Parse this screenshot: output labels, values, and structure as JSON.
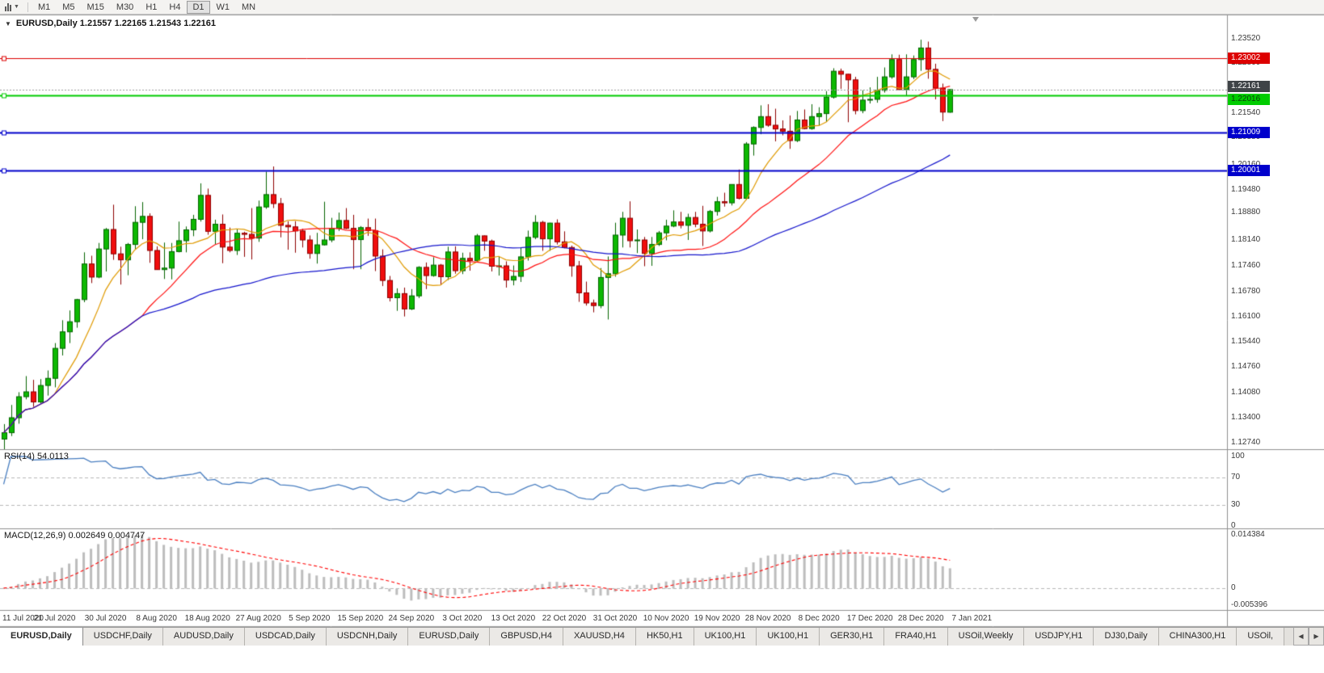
{
  "toolbar": {
    "timeframes": [
      "M1",
      "M5",
      "M15",
      "M30",
      "H1",
      "H4",
      "D1",
      "W1",
      "MN"
    ],
    "active_timeframe": "D1"
  },
  "chart_title": {
    "collapse_icon": "▼",
    "text": "EURUSD,Daily 1.21557 1.22165 1.21543 1.22161"
  },
  "chart_data": {
    "type": "candlestick",
    "title": "EURUSD,Daily",
    "ohlc_display": {
      "open": "1.21557",
      "high": "1.22165",
      "low": "1.21543",
      "close": "1.22161"
    },
    "ylim": [
      1.1257,
      1.2414
    ],
    "x_labels": [
      "11 Jul 2020",
      "21 Jul 2020",
      "30 Jul 2020",
      "8 Aug 2020",
      "18 Aug 2020",
      "27 Aug 2020",
      "5 Sep 2020",
      "15 Sep 2020",
      "24 Sep 2020",
      "3 Oct 2020",
      "13 Oct 2020",
      "22 Oct 2020",
      "31 Oct 2020",
      "10 Nov 2020",
      "19 Nov 2020",
      "28 Nov 2020",
      "8 Dec 2020",
      "17 Dec 2020",
      "28 Dec 2020",
      "7 Jan 2021"
    ],
    "price_axis_labels": [
      "1.23520",
      "1.22860",
      "1.21540",
      "1.20880",
      "1.20160",
      "1.19480",
      "1.18880",
      "1.18140",
      "1.17460",
      "1.16780",
      "1.16100",
      "1.15440",
      "1.14760",
      "1.14080",
      "1.13400",
      "1.12740"
    ],
    "colors": {
      "background": "#ffffff",
      "axis_text": "#3a3a3a",
      "bull": "#0db802",
      "bull_border": "#056400",
      "bull_wick": "#056400",
      "bear": "#f00e0e",
      "bear_border": "#8e0000",
      "bear_wick": "#8e0000"
    },
    "moving_averages": [
      {
        "name": "sma-fast",
        "period": 8,
        "color": "#e09a00"
      },
      {
        "name": "sma-mid",
        "period": 20,
        "color": "#ff1010"
      },
      {
        "name": "sma-slow",
        "period": 50,
        "color": "#1414cc"
      }
    ],
    "horizontal_levels": [
      {
        "label": "1.23002",
        "price": 1.23002,
        "color": "#dd0000",
        "text_color": "#ffffff",
        "width": 1,
        "dy": 0
      },
      {
        "label": "1.22016",
        "price": 1.22016,
        "color": "#00cc00",
        "text_color": "#0b3d0b",
        "width": 2,
        "dy": 5
      },
      {
        "label": "1.21009",
        "price": 1.21009,
        "color": "#0000cc",
        "text_color": "#ffffff",
        "width": 2,
        "dy": 0
      },
      {
        "label": "1.20001",
        "price": 1.20001,
        "color": "#0000cc",
        "text_color": "#ffffff",
        "width": 2,
        "dy": 0
      }
    ],
    "current_price": {
      "label": "1.22161",
      "price": 1.22161,
      "line_color": "#9a9a9a",
      "tag_color": "#3f4347",
      "text_color": "#ffffff",
      "dy": -4
    },
    "indicators": [
      {
        "type": "line",
        "name": "rsi",
        "label": "RSI(14) 54.0113",
        "period": 14,
        "value": "54.0113",
        "color": "#4a7fc1",
        "levels": [
          70,
          30
        ],
        "axis_labels": [
          "100",
          "70",
          "30",
          "0"
        ],
        "ylim": [
          0,
          100
        ]
      },
      {
        "type": "macd",
        "name": "macd",
        "label": "MACD(12,26,9) 0.002649 0.004747",
        "fast": 12,
        "slow": 26,
        "signal": 9,
        "values": [
          "0.002649",
          "0.004747"
        ],
        "histogram_color": "#bdbdbd",
        "signal_color": "#ff0000",
        "axis_labels": [
          "0.014384",
          "0",
          "-0.005396"
        ],
        "ylim": [
          -0.0055,
          0.0148
        ]
      }
    ],
    "ohlc": [
      [
        1.1284,
        1.1324,
        1.1255,
        1.1301
      ],
      [
        1.1301,
        1.1375,
        1.1292,
        1.1341
      ],
      [
        1.1341,
        1.1409,
        1.1325,
        1.1397
      ],
      [
        1.1397,
        1.1452,
        1.139,
        1.141
      ],
      [
        1.141,
        1.1442,
        1.137,
        1.1383
      ],
      [
        1.1383,
        1.1444,
        1.1378,
        1.1427
      ],
      [
        1.1427,
        1.1467,
        1.14,
        1.1446
      ],
      [
        1.1446,
        1.154,
        1.1422,
        1.1526
      ],
      [
        1.1526,
        1.1601,
        1.1507,
        1.157
      ],
      [
        1.157,
        1.1627,
        1.154,
        1.1597
      ],
      [
        1.1597,
        1.1658,
        1.1581,
        1.1656
      ],
      [
        1.1656,
        1.1782,
        1.1649,
        1.1751
      ],
      [
        1.1751,
        1.1773,
        1.17,
        1.1716
      ],
      [
        1.1716,
        1.1807,
        1.1713,
        1.1791
      ],
      [
        1.1791,
        1.1847,
        1.1731,
        1.1843
      ],
      [
        1.1843,
        1.1909,
        1.1762,
        1.1778
      ],
      [
        1.1778,
        1.1797,
        1.1696,
        1.1762
      ],
      [
        1.1762,
        1.1807,
        1.1721,
        1.1803
      ],
      [
        1.1803,
        1.1905,
        1.1791,
        1.1862
      ],
      [
        1.1862,
        1.1916,
        1.1817,
        1.1878
      ],
      [
        1.1878,
        1.1886,
        1.1754,
        1.1787
      ],
      [
        1.1787,
        1.1798,
        1.1736,
        1.1736
      ],
      [
        1.1736,
        1.1808,
        1.1711,
        1.174
      ],
      [
        1.174,
        1.1807,
        1.171,
        1.1784
      ],
      [
        1.1784,
        1.1864,
        1.1782,
        1.1813
      ],
      [
        1.1813,
        1.1851,
        1.1782,
        1.1842
      ],
      [
        1.1842,
        1.1882,
        1.1825,
        1.187
      ],
      [
        1.187,
        1.1966,
        1.1864,
        1.1934
      ],
      [
        1.1934,
        1.1952,
        1.1829,
        1.1838
      ],
      [
        1.1838,
        1.1869,
        1.1804,
        1.1857
      ],
      [
        1.1857,
        1.1883,
        1.1753,
        1.1796
      ],
      [
        1.1796,
        1.1848,
        1.1782,
        1.1787
      ],
      [
        1.1787,
        1.1843,
        1.1775,
        1.1833
      ],
      [
        1.1833,
        1.1837,
        1.177,
        1.183
      ],
      [
        1.183,
        1.19,
        1.1763,
        1.182
      ],
      [
        1.182,
        1.192,
        1.181,
        1.1903
      ],
      [
        1.1903,
        1.1997,
        1.1898,
        1.1936
      ],
      [
        1.1936,
        1.2011,
        1.19,
        1.1912
      ],
      [
        1.1912,
        1.1927,
        1.1822,
        1.1854
      ],
      [
        1.1854,
        1.1865,
        1.1789,
        1.185
      ],
      [
        1.185,
        1.1865,
        1.1781,
        1.1839
      ],
      [
        1.1839,
        1.1845,
        1.1795,
        1.1815
      ],
      [
        1.1815,
        1.1827,
        1.1765,
        1.1779
      ],
      [
        1.1779,
        1.1834,
        1.1752,
        1.1802
      ],
      [
        1.1802,
        1.1917,
        1.18,
        1.1815
      ],
      [
        1.1815,
        1.1874,
        1.1809,
        1.1846
      ],
      [
        1.1846,
        1.1888,
        1.1839,
        1.1867
      ],
      [
        1.1867,
        1.19,
        1.1844,
        1.1846
      ],
      [
        1.1846,
        1.1882,
        1.1737,
        1.1816
      ],
      [
        1.1816,
        1.1852,
        1.1737,
        1.1848
      ],
      [
        1.1848,
        1.1872,
        1.1826,
        1.184
      ],
      [
        1.184,
        1.1872,
        1.1732,
        1.1772
      ],
      [
        1.1772,
        1.179,
        1.1692,
        1.1707
      ],
      [
        1.1707,
        1.1719,
        1.1651,
        1.1661
      ],
      [
        1.1661,
        1.1686,
        1.1626,
        1.1672
      ],
      [
        1.1672,
        1.1688,
        1.1611,
        1.1631
      ],
      [
        1.1631,
        1.1684,
        1.1628,
        1.1666
      ],
      [
        1.1666,
        1.1745,
        1.166,
        1.1742
      ],
      [
        1.1742,
        1.1755,
        1.1684,
        1.172
      ],
      [
        1.172,
        1.1769,
        1.1717,
        1.1748
      ],
      [
        1.1748,
        1.1751,
        1.1695,
        1.1717
      ],
      [
        1.1717,
        1.1797,
        1.1708,
        1.1783
      ],
      [
        1.1783,
        1.1798,
        1.1725,
        1.1733
      ],
      [
        1.1733,
        1.1781,
        1.1724,
        1.1766
      ],
      [
        1.1766,
        1.1782,
        1.1733,
        1.176
      ],
      [
        1.176,
        1.1831,
        1.1756,
        1.1826
      ],
      [
        1.1826,
        1.1827,
        1.1786,
        1.1812
      ],
      [
        1.1812,
        1.1816,
        1.1731,
        1.1745
      ],
      [
        1.1745,
        1.1772,
        1.172,
        1.1746
      ],
      [
        1.1746,
        1.1758,
        1.1688,
        1.1708
      ],
      [
        1.1708,
        1.1747,
        1.1694,
        1.1718
      ],
      [
        1.1718,
        1.1794,
        1.1703,
        1.177
      ],
      [
        1.177,
        1.184,
        1.176,
        1.1822
      ],
      [
        1.1822,
        1.1881,
        1.1817,
        1.1862
      ],
      [
        1.1862,
        1.1866,
        1.1786,
        1.1818
      ],
      [
        1.1818,
        1.1861,
        1.1786,
        1.186
      ],
      [
        1.186,
        1.187,
        1.1803,
        1.181
      ],
      [
        1.181,
        1.1838,
        1.1793,
        1.1795
      ],
      [
        1.1795,
        1.18,
        1.1717,
        1.1746
      ],
      [
        1.1746,
        1.1759,
        1.165,
        1.1674
      ],
      [
        1.1674,
        1.1704,
        1.164,
        1.1647
      ],
      [
        1.1647,
        1.1656,
        1.1622,
        1.164
      ],
      [
        1.164,
        1.174,
        1.1633,
        1.1715
      ],
      [
        1.1715,
        1.1771,
        1.1603,
        1.1725
      ],
      [
        1.1725,
        1.1861,
        1.1717,
        1.1828
      ],
      [
        1.1828,
        1.189,
        1.1795,
        1.1873
      ],
      [
        1.1873,
        1.1918,
        1.1795,
        1.1813
      ],
      [
        1.1813,
        1.1843,
        1.178,
        1.1815
      ],
      [
        1.1815,
        1.1823,
        1.1745,
        1.1779
      ],
      [
        1.1779,
        1.1823,
        1.1746,
        1.1803
      ],
      [
        1.1803,
        1.1839,
        1.1799,
        1.1834
      ],
      [
        1.1834,
        1.1869,
        1.1814,
        1.1852
      ],
      [
        1.1852,
        1.1894,
        1.1849,
        1.1863
      ],
      [
        1.1863,
        1.189,
        1.1846,
        1.1854
      ],
      [
        1.1854,
        1.1885,
        1.1815,
        1.1875
      ],
      [
        1.1875,
        1.189,
        1.1849,
        1.1857
      ],
      [
        1.1857,
        1.1906,
        1.1799,
        1.1839
      ],
      [
        1.1839,
        1.1895,
        1.1835,
        1.1891
      ],
      [
        1.1891,
        1.193,
        1.188,
        1.1917
      ],
      [
        1.1917,
        1.1941,
        1.1904,
        1.1914
      ],
      [
        1.1914,
        1.1963,
        1.1907,
        1.1963
      ],
      [
        1.1963,
        1.2003,
        1.1923,
        1.1926
      ],
      [
        1.1926,
        1.2076,
        1.1922,
        1.2071
      ],
      [
        1.2071,
        1.2118,
        1.204,
        1.2115
      ],
      [
        1.2115,
        1.2174,
        1.2097,
        1.2144
      ],
      [
        1.2144,
        1.2177,
        1.2117,
        1.2121
      ],
      [
        1.2121,
        1.2165,
        1.2078,
        1.2111
      ],
      [
        1.2111,
        1.2134,
        1.2094,
        1.2105
      ],
      [
        1.2105,
        1.2147,
        1.2058,
        1.208
      ],
      [
        1.208,
        1.2159,
        1.2076,
        1.2135
      ],
      [
        1.2135,
        1.2163,
        1.211,
        1.2112
      ],
      [
        1.2112,
        1.2177,
        1.2109,
        1.2144
      ],
      [
        1.2144,
        1.2169,
        1.2121,
        1.2152
      ],
      [
        1.2152,
        1.2212,
        1.213,
        1.2196
      ],
      [
        1.2196,
        1.2273,
        1.2192,
        1.2265
      ],
      [
        1.2265,
        1.2272,
        1.2218,
        1.2257
      ],
      [
        1.2257,
        1.2258,
        1.2129,
        1.2242
      ],
      [
        1.2242,
        1.225,
        1.215,
        1.216
      ],
      [
        1.216,
        1.2214,
        1.2153,
        1.2188
      ],
      [
        1.2188,
        1.2222,
        1.2179,
        1.219
      ],
      [
        1.219,
        1.225,
        1.2181,
        1.2214
      ],
      [
        1.2214,
        1.2275,
        1.2208,
        1.225
      ],
      [
        1.225,
        1.231,
        1.2245,
        1.2296
      ],
      [
        1.2296,
        1.2309,
        1.2214,
        1.2216
      ],
      [
        1.2216,
        1.231,
        1.22,
        1.225
      ],
      [
        1.225,
        1.2307,
        1.2244,
        1.2296
      ],
      [
        1.2296,
        1.2349,
        1.2266,
        1.2327
      ],
      [
        1.2327,
        1.2344,
        1.2245,
        1.227
      ],
      [
        1.227,
        1.2285,
        1.219,
        1.222
      ],
      [
        1.222,
        1.2232,
        1.2132,
        1.2156
      ],
      [
        1.21557,
        1.22165,
        1.21543,
        1.22161
      ]
    ]
  },
  "bottom_tabs": {
    "active_index": 0,
    "items": [
      "EURUSD,Daily",
      "USDCHF,Daily",
      "AUDUSD,Daily",
      "USDCAD,Daily",
      "USDCNH,Daily",
      "EURUSD,Daily",
      "GBPUSD,H4",
      "XAUUSD,H4",
      "HK50,H1",
      "UK100,H1",
      "UK100,H1",
      "GER30,H1",
      "FRA40,H1",
      "USOil,Weekly",
      "USDJPY,H1",
      "DJ30,Daily",
      "CHINA300,H1",
      "USOil,"
    ],
    "scroll_left_icon": "◀",
    "scroll_right_icon": "▶"
  }
}
